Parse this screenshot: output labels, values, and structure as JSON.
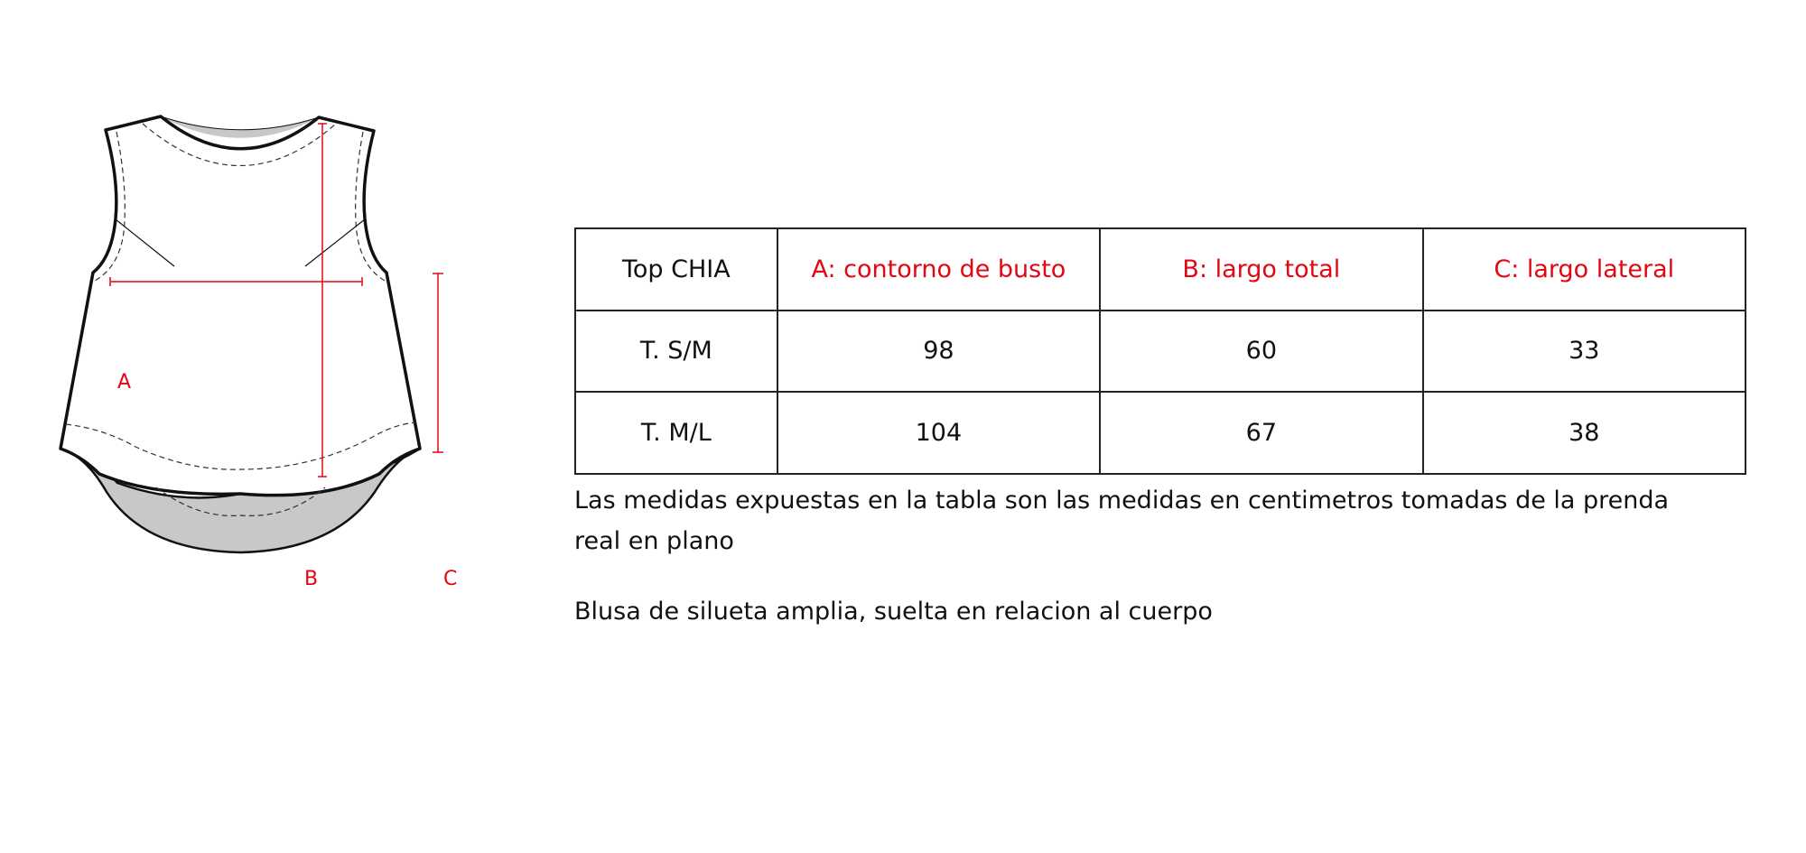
{
  "diagram": {
    "labels": {
      "a": "A",
      "b": "B",
      "c": "C"
    },
    "colors": {
      "measure": "#e30613",
      "fill": "#c8c8c8",
      "outline": "#111111"
    }
  },
  "table": {
    "headers": [
      "Top CHIA",
      "A: contorno de busto",
      "B: largo total",
      "C: largo lateral"
    ],
    "rows": [
      [
        "T. S/M",
        "98",
        "60",
        "33"
      ],
      [
        "T. M/L",
        "104",
        "67",
        "38"
      ]
    ]
  },
  "notes": {
    "measures": "Las medidas expuestas en la tabla son las medidas en centimetros tomadas de la prenda real en plano",
    "fit": "Blusa de silueta amplia, suelta en relacion al cuerpo"
  }
}
